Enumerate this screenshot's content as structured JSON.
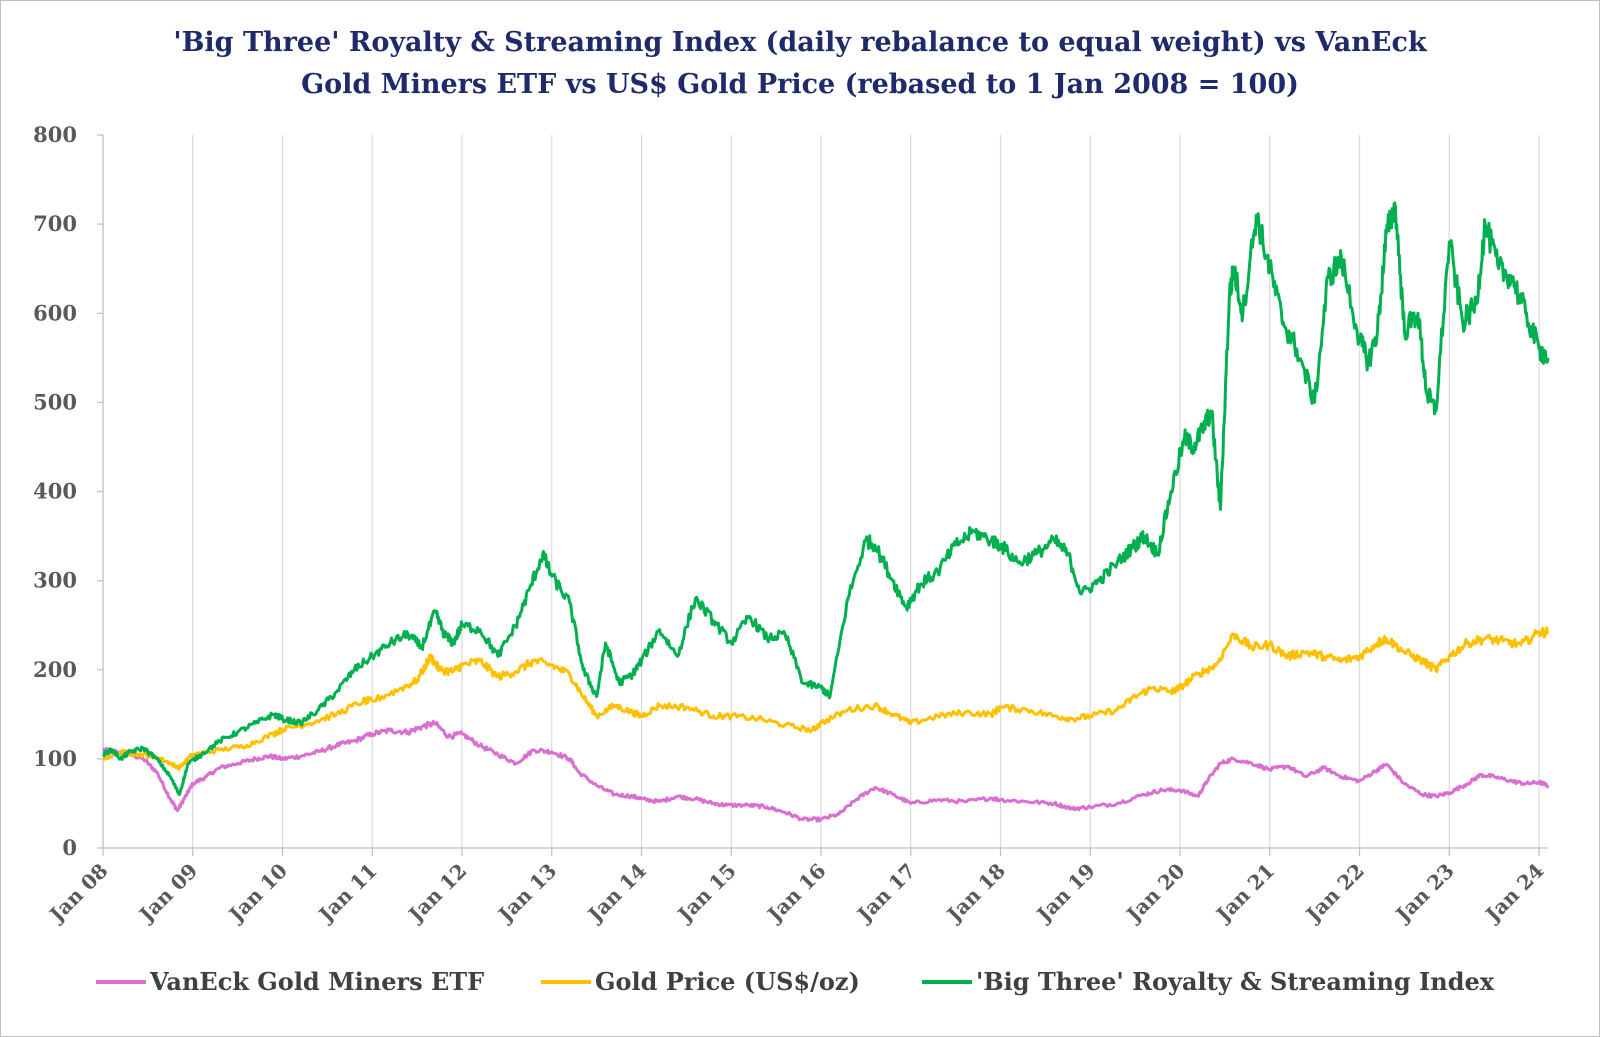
{
  "chart_data": {
    "type": "line",
    "title_lines": [
      "'Big Three' Royalty & Streaming Index (daily rebalance to equal weight) vs VanEck",
      "Gold Miners ETF vs US$ Gold Price (rebased to 1 Jan 2008 = 100)"
    ],
    "xlabel": "",
    "ylabel": "",
    "ylim": [
      0,
      800
    ],
    "yticks": [
      "0",
      "100",
      "200",
      "300",
      "400",
      "500",
      "600",
      "700",
      "800"
    ],
    "xticks": [
      "Jan 08",
      "Jan 09",
      "Jan 10",
      "Jan 11",
      "Jan 12",
      "Jan 13",
      "Jan 14",
      "Jan 15",
      "Jan 16",
      "Jan 17",
      "Jan 18",
      "Jan 19",
      "Jan 20",
      "Jan 21",
      "Jan 22",
      "Jan 23",
      "Jan 24"
    ],
    "xlim": [
      2008.0,
      2024.1
    ],
    "grid": "vertical",
    "legend_position": "bottom",
    "series": [
      {
        "name": "VanEck Gold Miners ETF",
        "color": "#d96fd0",
        "x": [
          2008.0,
          2008.15,
          2008.3,
          2008.45,
          2008.6,
          2008.75,
          2008.83,
          2008.92,
          2009.0,
          2009.15,
          2009.3,
          2009.5,
          2009.7,
          2009.85,
          2010.0,
          2010.2,
          2010.4,
          2010.6,
          2010.8,
          2011.0,
          2011.2,
          2011.4,
          2011.55,
          2011.7,
          2011.85,
          2012.0,
          2012.2,
          2012.4,
          2012.6,
          2012.8,
          2013.0,
          2013.2,
          2013.3,
          2013.5,
          2013.7,
          2013.9,
          2014.0,
          2014.2,
          2014.4,
          2014.6,
          2014.8,
          2014.95,
          2015.2,
          2015.4,
          2015.6,
          2015.8,
          2016.0,
          2016.2,
          2016.4,
          2016.6,
          2016.8,
          2017.0,
          2017.3,
          2017.6,
          2017.9,
          2018.0,
          2018.3,
          2018.6,
          2018.8,
          2019.0,
          2019.3,
          2019.6,
          2019.8,
          2020.0,
          2020.2,
          2020.3,
          2020.45,
          2020.6,
          2020.8,
          2021.0,
          2021.2,
          2021.4,
          2021.6,
          2021.8,
          2022.0,
          2022.2,
          2022.3,
          2022.5,
          2022.7,
          2022.85,
          2023.0,
          2023.2,
          2023.35,
          2023.5,
          2023.7,
          2023.85,
          2024.0,
          2024.1
        ],
        "values": [
          110,
          108,
          105,
          100,
          85,
          55,
          42,
          58,
          72,
          80,
          90,
          95,
          100,
          103,
          100,
          103,
          108,
          115,
          120,
          128,
          132,
          130,
          136,
          140,
          125,
          128,
          115,
          105,
          95,
          110,
          108,
          100,
          85,
          70,
          60,
          58,
          55,
          52,
          58,
          55,
          50,
          48,
          48,
          46,
          40,
          32,
          32,
          38,
          55,
          68,
          60,
          50,
          54,
          52,
          56,
          54,
          52,
          50,
          44,
          46,
          50,
          60,
          65,
          65,
          58,
          75,
          95,
          100,
          95,
          88,
          92,
          80,
          90,
          80,
          75,
          88,
          94,
          72,
          60,
          58,
          62,
          72,
          82,
          80,
          75,
          72,
          74,
          70
        ]
      },
      {
        "name": "Gold Price (US$/oz)",
        "color": "#ffc000",
        "x": [
          2008.0,
          2008.2,
          2008.4,
          2008.6,
          2008.75,
          2008.85,
          2009.0,
          2009.3,
          2009.6,
          2009.9,
          2010.0,
          2010.3,
          2010.6,
          2010.9,
          2011.0,
          2011.3,
          2011.5,
          2011.65,
          2011.75,
          2011.9,
          2012.0,
          2012.2,
          2012.4,
          2012.6,
          2012.8,
          2013.0,
          2013.2,
          2013.35,
          2013.5,
          2013.7,
          2013.9,
          2014.0,
          2014.2,
          2014.5,
          2014.8,
          2015.0,
          2015.3,
          2015.6,
          2015.9,
          2016.0,
          2016.3,
          2016.6,
          2016.8,
          2017.0,
          2017.3,
          2017.6,
          2017.9,
          2018.0,
          2018.3,
          2018.6,
          2018.8,
          2019.0,
          2019.3,
          2019.5,
          2019.7,
          2019.9,
          2020.0,
          2020.2,
          2020.4,
          2020.6,
          2020.8,
          2021.0,
          2021.2,
          2021.4,
          2021.6,
          2021.8,
          2022.0,
          2022.2,
          2022.3,
          2022.5,
          2022.7,
          2022.85,
          2023.0,
          2023.2,
          2023.4,
          2023.6,
          2023.8,
          2024.0,
          2024.1
        ],
        "values": [
          100,
          108,
          105,
          102,
          95,
          90,
          105,
          110,
          115,
          128,
          133,
          140,
          150,
          165,
          165,
          178,
          188,
          215,
          200,
          198,
          205,
          210,
          192,
          198,
          210,
          205,
          195,
          170,
          148,
          160,
          152,
          148,
          160,
          158,
          148,
          148,
          145,
          138,
          132,
          140,
          155,
          160,
          150,
          140,
          148,
          152,
          150,
          158,
          155,
          148,
          145,
          148,
          155,
          170,
          180,
          175,
          180,
          195,
          205,
          240,
          225,
          228,
          215,
          220,
          215,
          210,
          215,
          230,
          235,
          220,
          210,
          200,
          215,
          230,
          235,
          232,
          228,
          242,
          242
        ]
      },
      {
        "name": "'Big Three' Royalty & Streaming Index",
        "color": "#00b050",
        "x": [
          2008.0,
          2008.1,
          2008.2,
          2008.3,
          2008.45,
          2008.6,
          2008.75,
          2008.85,
          2008.95,
          2009.1,
          2009.3,
          2009.5,
          2009.7,
          2009.9,
          2010.0,
          2010.2,
          2010.4,
          2010.6,
          2010.8,
          2011.0,
          2011.2,
          2011.4,
          2011.55,
          2011.7,
          2011.8,
          2011.9,
          2012.0,
          2012.2,
          2012.4,
          2012.6,
          2012.75,
          2012.9,
          2013.0,
          2013.2,
          2013.35,
          2013.5,
          2013.6,
          2013.75,
          2013.9,
          2014.0,
          2014.2,
          2014.4,
          2014.6,
          2014.8,
          2015.0,
          2015.2,
          2015.4,
          2015.6,
          2015.8,
          2016.0,
          2016.1,
          2016.3,
          2016.5,
          2016.6,
          2016.8,
          2016.95,
          2017.1,
          2017.3,
          2017.5,
          2017.7,
          2017.9,
          2018.0,
          2018.2,
          2018.4,
          2018.6,
          2018.75,
          2018.9,
          2019.1,
          2019.3,
          2019.5,
          2019.6,
          2019.75,
          2019.9,
          2020.05,
          2020.15,
          2020.25,
          2020.35,
          2020.45,
          2020.55,
          2020.6,
          2020.7,
          2020.85,
          2021.0,
          2021.15,
          2021.3,
          2021.5,
          2021.65,
          2021.8,
          2022.0,
          2022.1,
          2022.2,
          2022.3,
          2022.4,
          2022.5,
          2022.65,
          2022.75,
          2022.85,
          2023.0,
          2023.15,
          2023.3,
          2023.4,
          2023.55,
          2023.7,
          2023.85,
          2024.0,
          2024.1
        ],
        "values": [
          105,
          110,
          100,
          108,
          112,
          100,
          80,
          60,
          95,
          105,
          120,
          130,
          140,
          150,
          145,
          140,
          155,
          175,
          200,
          215,
          230,
          240,
          225,
          265,
          240,
          230,
          250,
          245,
          215,
          250,
          290,
          330,
          305,
          275,
          200,
          170,
          230,
          185,
          195,
          210,
          245,
          215,
          280,
          255,
          230,
          260,
          235,
          240,
          185,
          180,
          170,
          280,
          345,
          340,
          300,
          270,
          295,
          310,
          340,
          355,
          345,
          340,
          320,
          330,
          345,
          330,
          285,
          300,
          320,
          340,
          350,
          330,
          400,
          460,
          450,
          470,
          490,
          380,
          620,
          650,
          600,
          710,
          650,
          590,
          560,
          500,
          640,
          660,
          570,
          545,
          580,
          690,
          720,
          580,
          600,
          510,
          490,
          680,
          590,
          610,
          700,
          650,
          640,
          600,
          560,
          550
        ]
      }
    ]
  }
}
